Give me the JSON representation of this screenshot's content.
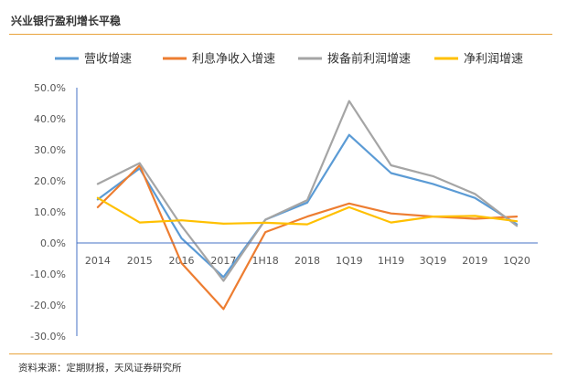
{
  "header": {
    "title": "兴业银行盈利增长平稳"
  },
  "footer": {
    "source": "资料来源：定期财报，天风证券研究所"
  },
  "colors": {
    "rule": "#E8A33C",
    "axis": "#4472C4"
  },
  "chart_data": {
    "type": "line",
    "categories": [
      "2014",
      "2015",
      "2016",
      "2017",
      "1H18",
      "2018",
      "1Q19",
      "1H19",
      "3Q19",
      "2019",
      "1Q20"
    ],
    "ylim": [
      -0.3,
      0.5
    ],
    "yticks": [
      -0.3,
      -0.2,
      -0.1,
      0.0,
      0.1,
      0.2,
      0.3,
      0.4,
      0.5
    ],
    "ytick_labels": [
      "-30.0%",
      "-20.0%",
      "-10.0%",
      "0.0%",
      "10.0%",
      "20.0%",
      "30.0%",
      "40.0%",
      "50.0%"
    ],
    "grid": false,
    "legend_position": "top",
    "series": [
      {
        "name": "营收增速",
        "color": "#5B9BD5",
        "values": [
          0.14,
          0.24,
          0.015,
          -0.11,
          0.075,
          0.13,
          0.348,
          0.225,
          0.19,
          0.145,
          0.06
        ]
      },
      {
        "name": "利息净收入增速",
        "color": "#ED7D31",
        "values": [
          0.115,
          0.25,
          -0.065,
          -0.213,
          0.035,
          0.085,
          0.127,
          0.095,
          0.085,
          0.078,
          0.085
        ]
      },
      {
        "name": "拨备前利润增速",
        "color": "#A5A5A5",
        "values": [
          0.19,
          0.257,
          0.055,
          -0.122,
          0.075,
          0.138,
          0.457,
          0.25,
          0.215,
          0.158,
          0.055
        ]
      },
      {
        "name": "净利润增速",
        "color": "#FFC000",
        "values": [
          0.145,
          0.066,
          0.073,
          0.062,
          0.065,
          0.06,
          0.115,
          0.066,
          0.085,
          0.087,
          0.07
        ]
      }
    ]
  }
}
